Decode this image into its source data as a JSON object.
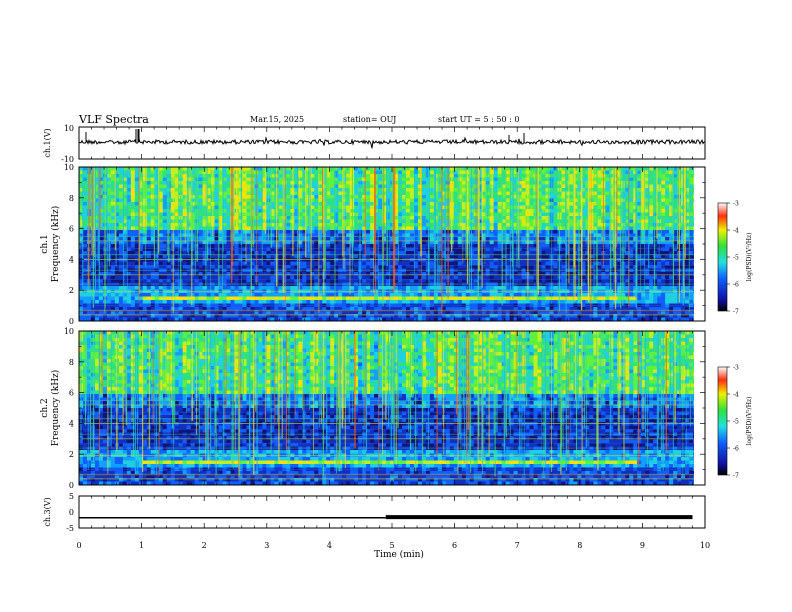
{
  "header": {
    "title": "VLF Spectra",
    "date": "Mar.15, 2025",
    "station": "station= OUJ",
    "start": "start  UT =   5  : 50 : 0"
  },
  "chart_data": [
    {
      "type": "line",
      "ylabel": "ch.1(V)",
      "ylim": [
        -10,
        10
      ],
      "yticks": [
        "10",
        "-10"
      ],
      "xlim": [
        0,
        10
      ]
    },
    {
      "type": "heatmap",
      "ylabel": "ch.1\nFrequency (kHz)",
      "ylabel_lines": [
        "ch.1",
        "Frequency (kHz)"
      ],
      "ylim": [
        0,
        10
      ],
      "yticks": [
        "0",
        "2",
        "4",
        "6",
        "8",
        "10"
      ],
      "xlim": [
        0,
        10
      ],
      "colorbar": {
        "label": "log(PSD)(V²/Hz)",
        "range": [
          -7,
          -3
        ],
        "ticks": [
          "-3",
          "-4",
          "-5",
          "-6",
          "-7"
        ]
      }
    },
    {
      "type": "heatmap",
      "ylabel": "ch.2\nFrequency (kHz)",
      "ylabel_lines": [
        "ch.2",
        "Frequency (kHz)"
      ],
      "ylim": [
        0,
        10
      ],
      "yticks": [
        "0",
        "2",
        "4",
        "6",
        "8",
        "10"
      ],
      "xlim": [
        0,
        10
      ],
      "colorbar": {
        "label": "log(PSD)(V²/Hz)",
        "range": [
          -7,
          -3
        ],
        "ticks": [
          "-3",
          "-4",
          "-5",
          "-6",
          "-7"
        ]
      }
    },
    {
      "type": "line",
      "ylabel": "ch.3(V)",
      "ylim": [
        -5,
        5
      ],
      "yticks": [
        "5",
        "0",
        "-5"
      ],
      "xlim": [
        0,
        10
      ],
      "xlabel": "Time (min)",
      "xticks": [
        "0",
        "1",
        "2",
        "3",
        "4",
        "5",
        "6",
        "7",
        "8",
        "9",
        "10"
      ],
      "series": [
        {
          "x": [
            0,
            4.9,
            4.9,
            9.8
          ],
          "y": [
            -1.8,
            -1.8,
            -1.6,
            -1.6
          ]
        }
      ]
    }
  ]
}
